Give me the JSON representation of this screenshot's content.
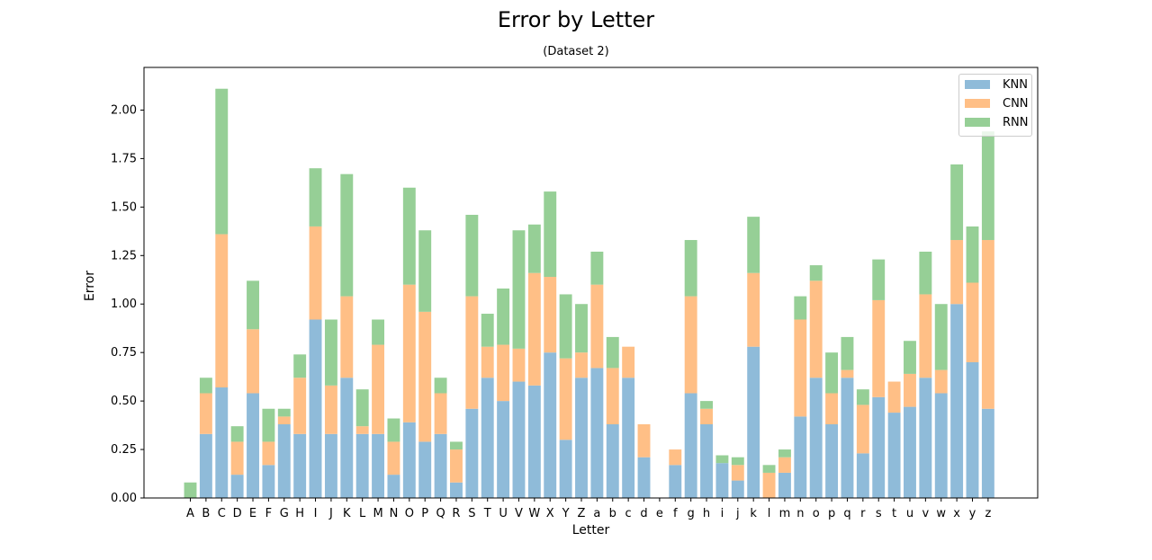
{
  "chart_data": {
    "type": "bar",
    "stacked": true,
    "title": "Error by Letter",
    "subtitle": "(Dataset 2)",
    "xlabel": "Letter",
    "ylabel": "Error",
    "ylim": [
      0,
      2.22
    ],
    "yticks": [
      0.0,
      0.25,
      0.5,
      0.75,
      1.0,
      1.25,
      1.5,
      1.75,
      2.0
    ],
    "ytick_labels": [
      "0.00",
      "0.25",
      "0.50",
      "0.75",
      "1.00",
      "1.25",
      "1.50",
      "1.75",
      "2.00"
    ],
    "legend_position": "top-right",
    "categories": [
      "A",
      "B",
      "C",
      "D",
      "E",
      "F",
      "G",
      "H",
      "I",
      "J",
      "K",
      "L",
      "M",
      "N",
      "O",
      "P",
      "Q",
      "R",
      "S",
      "T",
      "U",
      "V",
      "W",
      "X",
      "Y",
      "Z",
      "a",
      "b",
      "c",
      "d",
      "e",
      "f",
      "g",
      "h",
      "i",
      "j",
      "k",
      "l",
      "m",
      "n",
      "o",
      "p",
      "q",
      "r",
      "s",
      "t",
      "u",
      "v",
      "w",
      "x",
      "y",
      "z"
    ],
    "series": [
      {
        "name": "KNN",
        "color": "#8fbbd9",
        "values": [
          0.0,
          0.33,
          0.57,
          0.12,
          0.54,
          0.17,
          0.38,
          0.33,
          0.92,
          0.33,
          0.62,
          0.33,
          0.33,
          0.12,
          0.39,
          0.29,
          0.33,
          0.08,
          0.46,
          0.62,
          0.5,
          0.6,
          0.58,
          0.75,
          0.3,
          0.62,
          0.67,
          0.38,
          0.62,
          0.21,
          0.0,
          0.17,
          0.54,
          0.38,
          0.18,
          0.09,
          0.78,
          0.0,
          0.13,
          0.42,
          0.62,
          0.38,
          0.62,
          0.23,
          0.52,
          0.44,
          0.47,
          0.62,
          0.54,
          1.0,
          0.7,
          0.46
        ]
      },
      {
        "name": "CNN",
        "color": "#ffbf86",
        "values": [
          0.0,
          0.21,
          0.79,
          0.17,
          0.33,
          0.12,
          0.04,
          0.29,
          0.48,
          0.25,
          0.42,
          0.04,
          0.46,
          0.17,
          0.71,
          0.67,
          0.21,
          0.17,
          0.58,
          0.16,
          0.29,
          0.17,
          0.58,
          0.39,
          0.42,
          0.13,
          0.43,
          0.29,
          0.16,
          0.17,
          0.0,
          0.08,
          0.5,
          0.08,
          0.0,
          0.08,
          0.38,
          0.13,
          0.08,
          0.5,
          0.5,
          0.16,
          0.04,
          0.25,
          0.5,
          0.16,
          0.17,
          0.43,
          0.12,
          0.33,
          0.41,
          0.87
        ]
      },
      {
        "name": "RNN",
        "color": "#96cf96",
        "values": [
          0.08,
          0.08,
          0.75,
          0.08,
          0.25,
          0.17,
          0.04,
          0.12,
          0.3,
          0.34,
          0.63,
          0.19,
          0.13,
          0.12,
          0.5,
          0.42,
          0.08,
          0.04,
          0.42,
          0.17,
          0.29,
          0.61,
          0.25,
          0.44,
          0.33,
          0.25,
          0.17,
          0.16,
          0.0,
          0.0,
          0.0,
          0.0,
          0.29,
          0.04,
          0.04,
          0.04,
          0.29,
          0.04,
          0.04,
          0.12,
          0.08,
          0.21,
          0.17,
          0.08,
          0.21,
          0.0,
          0.17,
          0.22,
          0.34,
          0.39,
          0.29,
          0.56
        ]
      }
    ]
  }
}
